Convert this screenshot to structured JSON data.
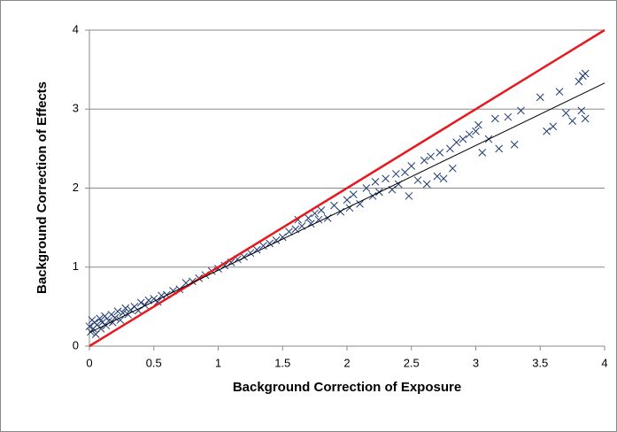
{
  "chart_data": {
    "type": "scatter",
    "xlabel": "Background Correction of Exposure",
    "ylabel": "Background Correction of Effects",
    "xlim": [
      0,
      4
    ],
    "ylim": [
      0,
      4
    ],
    "xticks": [
      0,
      0.5,
      1,
      1.5,
      2,
      2.5,
      3,
      3.5,
      4
    ],
    "yticks": [
      0,
      1,
      2,
      3,
      4
    ],
    "grid": true,
    "series": [
      {
        "color": "#1f3a73",
        "x": [
          0.0,
          0.01,
          0.02,
          0.03,
          0.04,
          0.05,
          0.06,
          0.08,
          0.09,
          0.1,
          0.12,
          0.13,
          0.15,
          0.17,
          0.18,
          0.2,
          0.22,
          0.24,
          0.26,
          0.28,
          0.3,
          0.32,
          0.35,
          0.38,
          0.4,
          0.43,
          0.46,
          0.5,
          0.53,
          0.56,
          0.6,
          0.65,
          0.7,
          0.75,
          0.8,
          0.85,
          0.9,
          0.95,
          1.0,
          1.05,
          1.1,
          1.15,
          1.2,
          1.25,
          1.3,
          1.35,
          1.4,
          1.45,
          1.5,
          1.55,
          1.6,
          1.62,
          1.65,
          1.7,
          1.72,
          1.75,
          1.78,
          1.8,
          1.85,
          1.9,
          1.95,
          2.0,
          2.02,
          2.05,
          2.1,
          2.15,
          2.2,
          2.22,
          2.25,
          2.3,
          2.35,
          2.38,
          2.4,
          2.45,
          2.48,
          2.5,
          2.55,
          2.6,
          2.62,
          2.65,
          2.7,
          2.72,
          2.75,
          2.8,
          2.82,
          2.85,
          2.9,
          2.95,
          3.0,
          3.02,
          3.05,
          3.1,
          3.15,
          3.18,
          3.25,
          3.35,
          3.3,
          3.5,
          3.55,
          3.6,
          3.65,
          3.7,
          3.75,
          3.8,
          3.82,
          3.85,
          3.83,
          3.85
        ],
        "values": [
          0.25,
          0.18,
          0.33,
          0.22,
          0.3,
          0.15,
          0.27,
          0.35,
          0.22,
          0.3,
          0.38,
          0.26,
          0.32,
          0.4,
          0.3,
          0.36,
          0.44,
          0.33,
          0.42,
          0.48,
          0.4,
          0.46,
          0.5,
          0.45,
          0.55,
          0.52,
          0.58,
          0.6,
          0.56,
          0.64,
          0.65,
          0.7,
          0.72,
          0.8,
          0.82,
          0.86,
          0.9,
          0.95,
          0.98,
          1.02,
          1.06,
          1.1,
          1.13,
          1.18,
          1.22,
          1.27,
          1.3,
          1.34,
          1.38,
          1.45,
          1.48,
          1.6,
          1.52,
          1.62,
          1.55,
          1.68,
          1.6,
          1.72,
          1.62,
          1.78,
          1.7,
          1.85,
          1.75,
          1.92,
          1.8,
          2.0,
          1.9,
          2.08,
          1.95,
          2.12,
          1.98,
          2.18,
          2.05,
          2.2,
          1.9,
          2.28,
          2.1,
          2.35,
          2.05,
          2.4,
          2.15,
          2.45,
          2.12,
          2.5,
          2.25,
          2.58,
          2.62,
          2.68,
          2.72,
          2.8,
          2.45,
          2.62,
          2.88,
          2.5,
          2.9,
          2.98,
          2.55,
          3.15,
          2.72,
          2.78,
          3.22,
          2.95,
          2.85,
          3.35,
          2.98,
          3.45,
          3.42,
          2.88
        ]
      }
    ],
    "lines": [
      {
        "color": "#e8191e",
        "x": [
          0,
          4
        ],
        "values": [
          0,
          4
        ]
      },
      {
        "color": "#000000",
        "x": [
          0,
          4
        ],
        "values": [
          0.17,
          3.33
        ]
      }
    ]
  }
}
